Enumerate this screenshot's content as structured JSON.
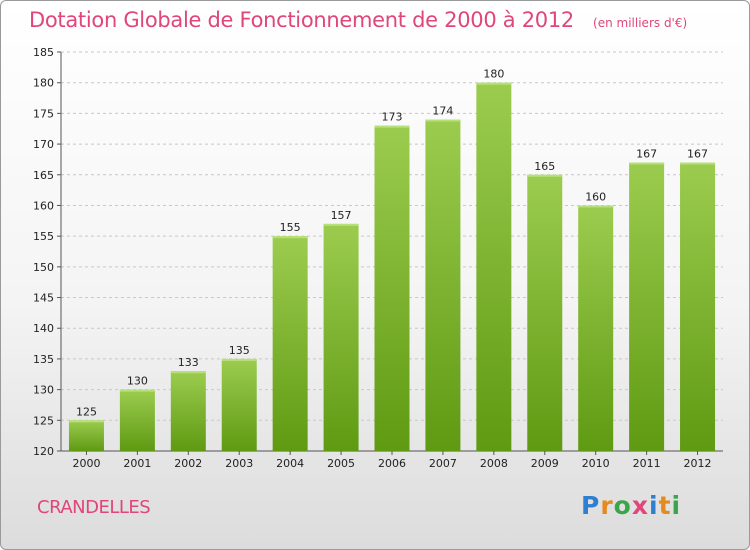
{
  "header": {
    "title": "Dotation Globale de Fonctionnement de 2000 à 2012",
    "unit": "(en milliers d'€)"
  },
  "footer": {
    "commune": "CRANDELLES",
    "brand": "Proxiti"
  },
  "colors": {
    "title": "#e0457b",
    "bar_top": "#9ccc4f",
    "bar_bottom": "#5f9a12",
    "grid": "#c8c8c8",
    "brand_letters": [
      "#2f7fd1",
      "#e58a1f",
      "#3aa64a",
      "#e0457b",
      "#2f7fd1",
      "#e58a1f",
      "#3aa64a"
    ]
  },
  "chart_data": {
    "type": "bar",
    "title": "Dotation Globale de Fonctionnement de 2000 à 2012",
    "ylabel": "(en milliers d'€)",
    "categories": [
      "2000",
      "2001",
      "2002",
      "2003",
      "2004",
      "2005",
      "2006",
      "2007",
      "2008",
      "2009",
      "2010",
      "2011",
      "2012"
    ],
    "values": [
      125,
      130,
      133,
      135,
      155,
      157,
      173,
      174,
      180,
      165,
      160,
      167,
      167
    ],
    "ylim": [
      120,
      185
    ],
    "yticks": [
      120,
      125,
      130,
      135,
      140,
      145,
      150,
      155,
      160,
      165,
      170,
      175,
      180,
      185
    ],
    "grid": "horizontal dashed",
    "data_labels": true
  }
}
